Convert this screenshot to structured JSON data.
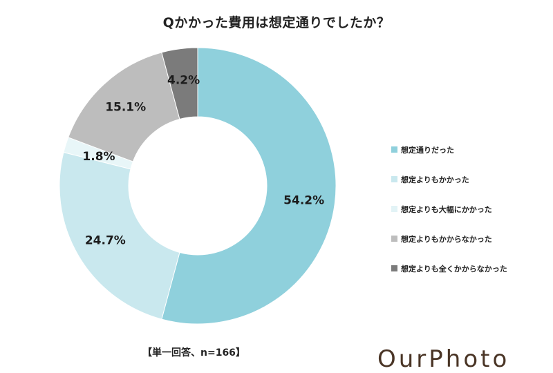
{
  "chart_data": {
    "type": "pie",
    "title": "Qかかった費用は想定通りでしたか？",
    "categories": [
      "想定通りだった",
      "想定よりもかかった",
      "想定よりも大幅にかかった",
      "想定よりもかからなかった",
      "想定よりも全くかからなかった"
    ],
    "values": [
      54.2,
      24.7,
      1.8,
      15.1,
      4.2
    ],
    "value_labels": [
      "54.2%",
      "24.7%",
      "1.8%",
      "15.1%",
      "4.2%"
    ],
    "colors": [
      "#8fd0dc",
      "#c9e8ee",
      "#e8f6f8",
      "#bdbdbd",
      "#7b7b7b"
    ],
    "donut": true,
    "legend_position": "right"
  },
  "footnote": "【単一回答、n=166】",
  "logo": {
    "text": "OurPhoto"
  }
}
